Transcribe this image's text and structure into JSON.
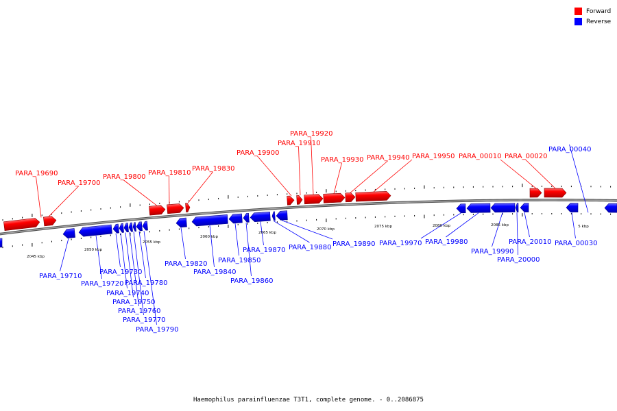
{
  "caption": "Haemophilus parainfluenzae T3T1, complete genome. - 0..2086875",
  "legend": [
    {
      "label": "Forward",
      "color": "#ff0000"
    },
    {
      "label": "Reverse",
      "color": "#0000ff"
    }
  ],
  "colors": {
    "forward": "#ff0000",
    "reverse": "#0000ff",
    "backbone": "#7f7f7f"
  },
  "scale_labels": [
    "2045 kbp",
    "2050 kbp",
    "2055 kbp",
    "2060 kbp",
    "2065 kbp",
    "2070 kbp",
    "2075 kbp",
    "2080 kbp",
    "2085 kbp",
    "5 kbp"
  ],
  "genes": [
    {
      "label": "PARA_19690",
      "strand": "forward"
    },
    {
      "label": "PARA_19700",
      "strand": "forward"
    },
    {
      "label": "PARA_19800",
      "strand": "forward"
    },
    {
      "label": "PARA_19810",
      "strand": "forward"
    },
    {
      "label": "PARA_19830",
      "strand": "forward"
    },
    {
      "label": "PARA_19900",
      "strand": "forward"
    },
    {
      "label": "PARA_19910",
      "strand": "forward"
    },
    {
      "label": "PARA_19920",
      "strand": "forward"
    },
    {
      "label": "PARA_19930",
      "strand": "forward"
    },
    {
      "label": "PARA_19940",
      "strand": "forward"
    },
    {
      "label": "PARA_19950",
      "strand": "forward"
    },
    {
      "label": "PARA_00010",
      "strand": "forward"
    },
    {
      "label": "PARA_00020",
      "strand": "forward"
    },
    {
      "label": "PARA_00040",
      "strand": "reverse"
    },
    {
      "label": "PARA_19710",
      "strand": "reverse"
    },
    {
      "label": "PARA_19720",
      "strand": "reverse"
    },
    {
      "label": "PARA_19730",
      "strand": "reverse"
    },
    {
      "label": "PARA_19740",
      "strand": "reverse"
    },
    {
      "label": "PARA_19750",
      "strand": "reverse"
    },
    {
      "label": "PARA_19760",
      "strand": "reverse"
    },
    {
      "label": "PARA_19770",
      "strand": "reverse"
    },
    {
      "label": "PARA_19780",
      "strand": "reverse"
    },
    {
      "label": "PARA_19790",
      "strand": "reverse"
    },
    {
      "label": "PARA_19820",
      "strand": "reverse"
    },
    {
      "label": "PARA_19840",
      "strand": "reverse"
    },
    {
      "label": "PARA_19850",
      "strand": "reverse"
    },
    {
      "label": "PARA_19860",
      "strand": "reverse"
    },
    {
      "label": "PARA_19870",
      "strand": "reverse"
    },
    {
      "label": "PARA_19880",
      "strand": "reverse"
    },
    {
      "label": "PARA_19890",
      "strand": "reverse"
    },
    {
      "label": "PARA_19970",
      "strand": "reverse"
    },
    {
      "label": "PARA_19980",
      "strand": "reverse"
    },
    {
      "label": "PARA_19990",
      "strand": "reverse"
    },
    {
      "label": "PARA_20000",
      "strand": "reverse"
    },
    {
      "label": "PARA_20010",
      "strand": "reverse"
    },
    {
      "label": "PARA_00030",
      "strand": "reverse"
    }
  ]
}
